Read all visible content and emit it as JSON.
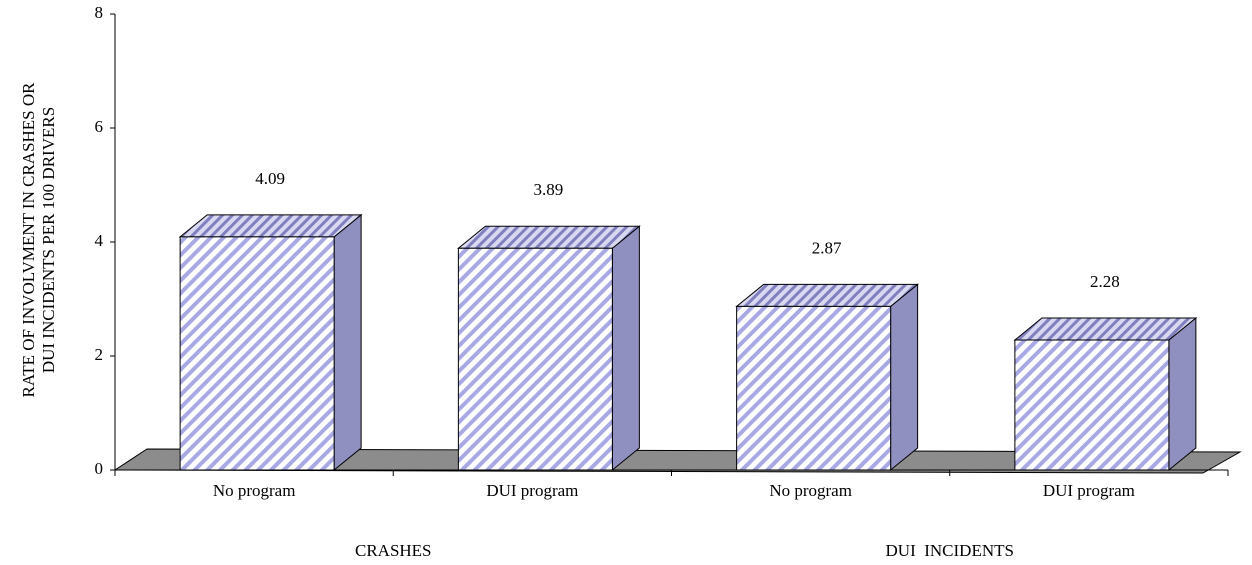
{
  "chart_data": {
    "type": "bar3d",
    "ylabel": [
      "RATE OF INVOLVMENT IN CRASHES OR",
      "DUI INCIDENTS PER 100 DRIVERS"
    ],
    "categories": [
      "No program",
      "DUI program",
      "No program",
      "DUI program"
    ],
    "groups": [
      "CRASHES",
      "DUI  INCIDENTS"
    ],
    "values": [
      4.09,
      3.89,
      2.87,
      2.28
    ],
    "color": "#8f8fc0",
    "ylim": [
      0,
      8
    ],
    "yticks": [
      0,
      2,
      4,
      6,
      8
    ]
  }
}
